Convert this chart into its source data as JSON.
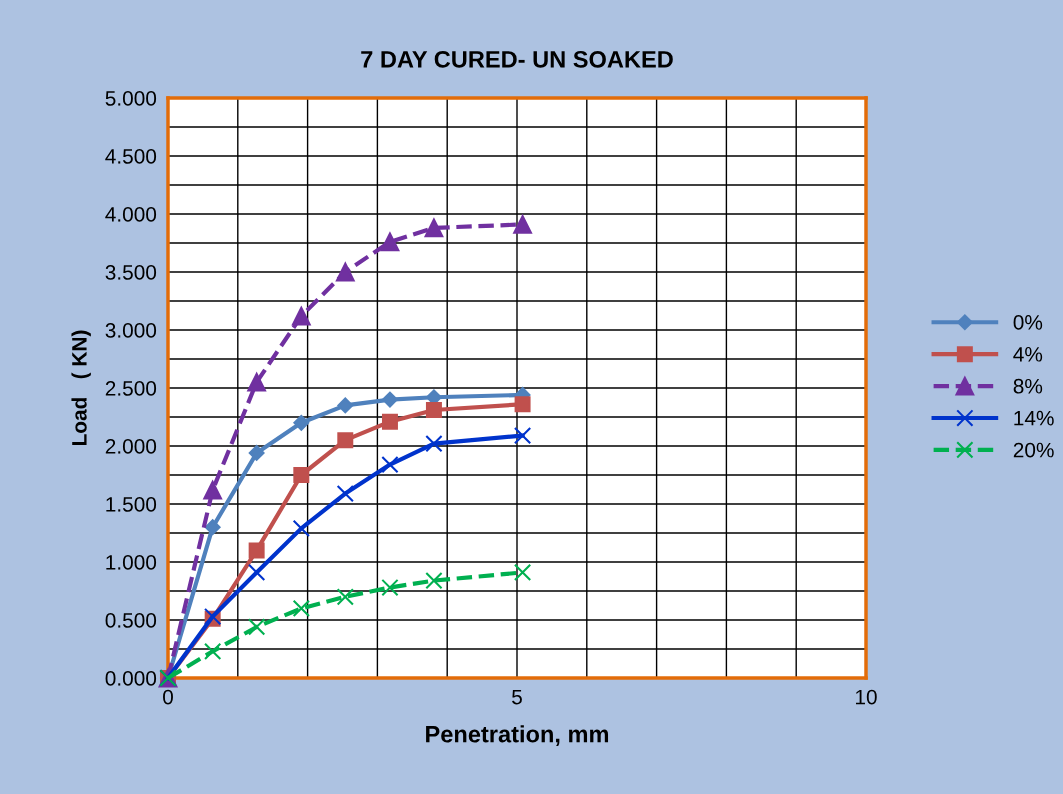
{
  "chart_data": {
    "type": "line",
    "title": "7 DAY CURED- UN SOAKED",
    "xlabel": "Penetration, mm",
    "ylabel": "Load   ( KN)",
    "x": [
      0,
      0.64,
      1.27,
      1.91,
      2.54,
      3.18,
      3.81,
      5.08
    ],
    "series": [
      {
        "name": "0%",
        "color": "#4f81bd",
        "marker": "diamond",
        "line_style": "solid",
        "values": [
          0,
          1.3,
          1.94,
          2.2,
          2.35,
          2.4,
          2.42,
          2.44
        ]
      },
      {
        "name": "4%",
        "color": "#c0504d",
        "marker": "square",
        "line_style": "solid",
        "values": [
          0,
          0.51,
          1.1,
          1.75,
          2.05,
          2.21,
          2.31,
          2.36
        ]
      },
      {
        "name": "8%",
        "color": "#7030a0",
        "marker": "triangle",
        "line_style": "dashed",
        "values": [
          0,
          1.62,
          2.55,
          3.12,
          3.5,
          3.76,
          3.88,
          3.91
        ]
      },
      {
        "name": "14%",
        "color": "#0033cc",
        "marker": "cross",
        "line_style": "solid",
        "values": [
          0,
          0.53,
          0.91,
          1.29,
          1.59,
          1.84,
          2.02,
          2.09
        ]
      },
      {
        "name": "20%",
        "color": "#00b050",
        "marker": "cross",
        "line_style": "dashed",
        "values": [
          0,
          0.23,
          0.44,
          0.6,
          0.7,
          0.78,
          0.84,
          0.91
        ]
      }
    ],
    "xlim": [
      0,
      10
    ],
    "ylim": [
      0,
      5
    ],
    "xticks": [
      0,
      {
        "value": 1,
        "label": null
      },
      {
        "value": 2,
        "label": null
      },
      {
        "value": 3,
        "label": null
      },
      {
        "value": 4,
        "label": null
      },
      5,
      {
        "value": 6,
        "label": null
      },
      {
        "value": 7,
        "label": null
      },
      {
        "value": 8,
        "label": null
      },
      {
        "value": 9,
        "label": null
      },
      10
    ],
    "yticks": [
      {
        "value": 0,
        "label": "0.000"
      },
      {
        "value": 0.25,
        "label": null
      },
      {
        "value": 0.5,
        "label": "0.500"
      },
      {
        "value": 0.75,
        "label": null
      },
      {
        "value": 1,
        "label": "1.000"
      },
      {
        "value": 1.25,
        "label": null
      },
      {
        "value": 1.5,
        "label": "1.500"
      },
      {
        "value": 1.75,
        "label": null
      },
      {
        "value": 2,
        "label": "2.000"
      },
      {
        "value": 2.25,
        "label": null
      },
      {
        "value": 2.5,
        "label": "2.500"
      },
      {
        "value": 2.75,
        "label": null
      },
      {
        "value": 3,
        "label": "3.000"
      },
      {
        "value": 3.25,
        "label": null
      },
      {
        "value": 3.5,
        "label": "3.500"
      },
      {
        "value": 3.75,
        "label": null
      },
      {
        "value": 4,
        "label": "4.000"
      },
      {
        "value": 4.25,
        "label": null
      },
      {
        "value": 4.5,
        "label": "4.500"
      },
      {
        "value": 4.75,
        "label": null
      },
      {
        "value": 5,
        "label": "5.000"
      }
    ],
    "grid": true,
    "legend": "right"
  }
}
